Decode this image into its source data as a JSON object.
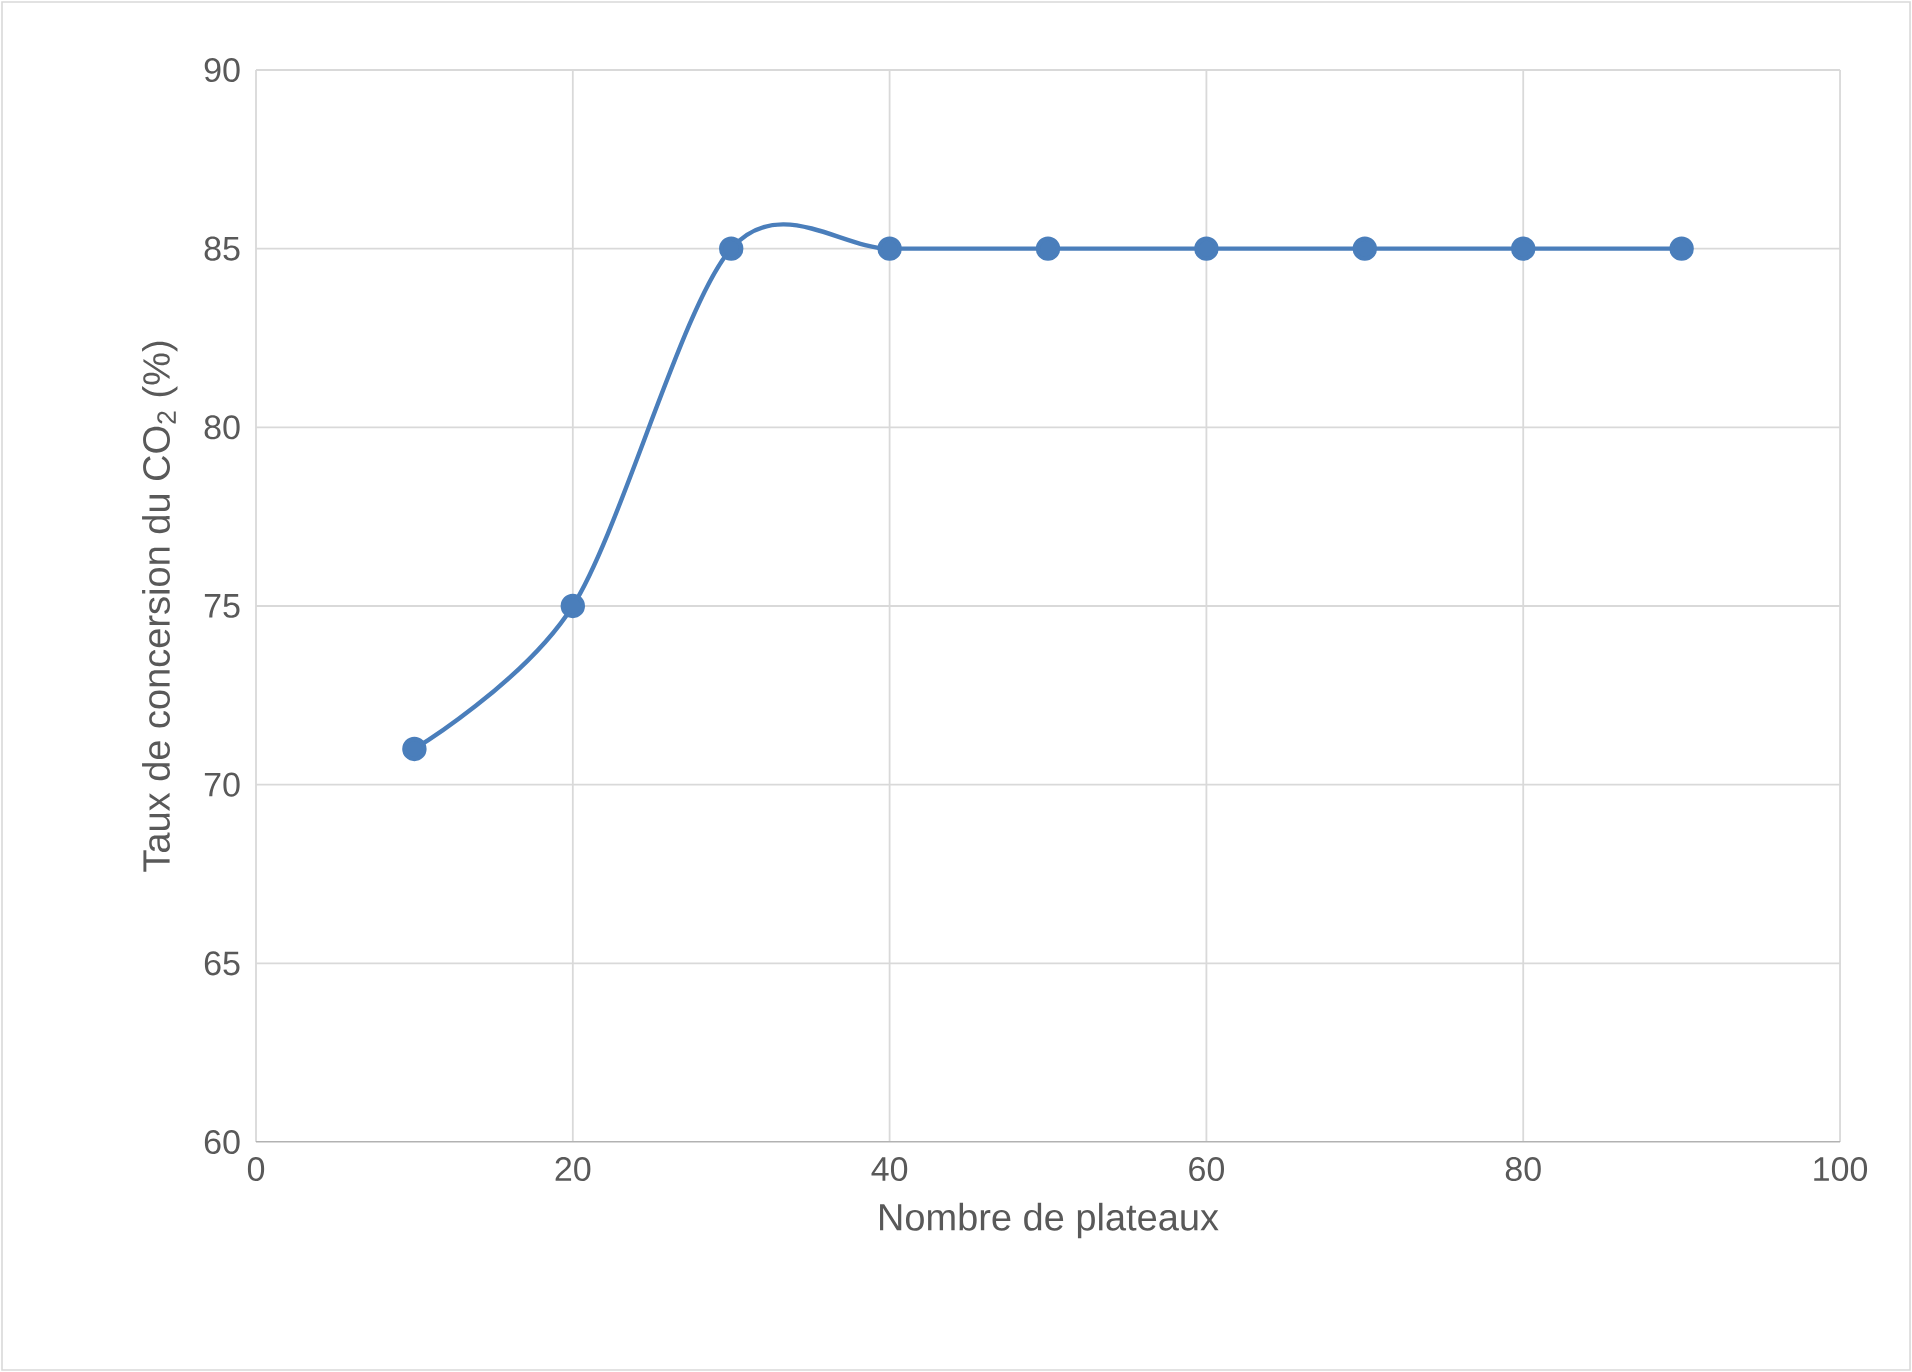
{
  "chart_data": {
    "type": "line",
    "xlabel": "Nombre de plateaux",
    "ylabel": "Taux de concersion du CO$_{2}$ (%)",
    "x": [
      10,
      20,
      30,
      40,
      50,
      60,
      70,
      80,
      90
    ],
    "series": [
      {
        "color": "#4a7ebb",
        "values": [
          71,
          75,
          85,
          85,
          85,
          85,
          85,
          85,
          85
        ]
      }
    ],
    "xlim": [
      0,
      100
    ],
    "xticks": [
      0,
      20,
      40,
      60,
      80,
      100
    ],
    "ylim": [
      60,
      90
    ],
    "yticks": [
      60,
      65,
      70,
      75,
      80,
      85,
      90
    ],
    "grid": true,
    "marker": "circle",
    "line_style": "solid"
  }
}
